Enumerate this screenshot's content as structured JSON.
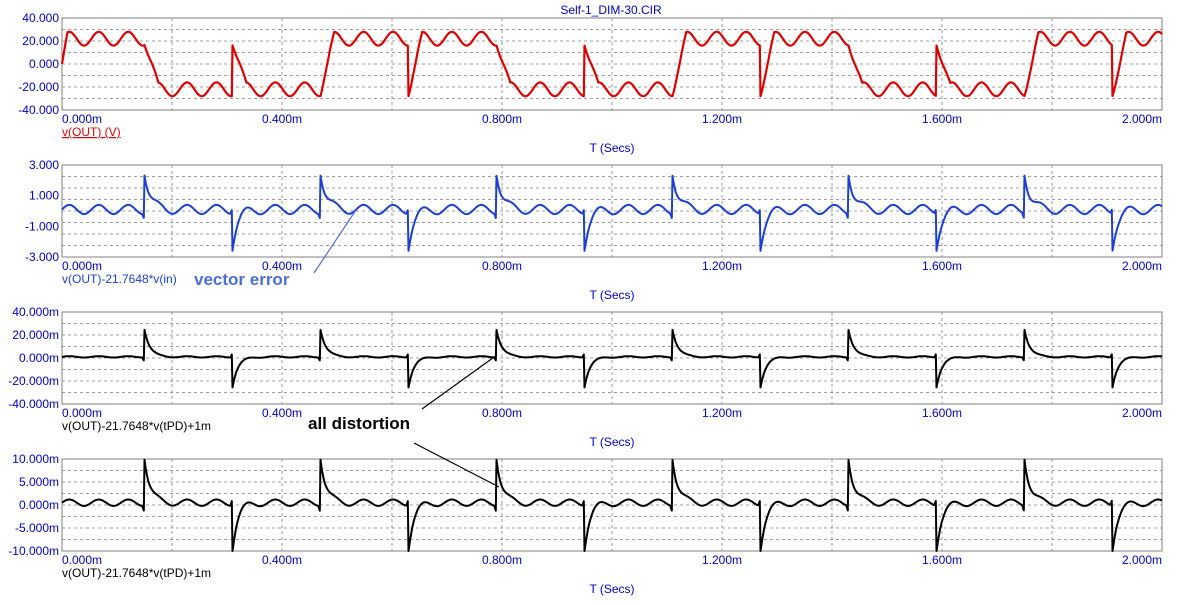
{
  "title": "Self-1_DIM-30.CIR",
  "colors": {
    "axis_text": "#0000cc",
    "grid": "#808080",
    "red_trace": "#e00000",
    "blue_trace": "#1c3fd6",
    "black_trace": "#000000",
    "annotation_blue": "#4a6fd8",
    "annotation_black": "#000000"
  },
  "annotations": {
    "vector_error": "vector error",
    "all_distortion": "all distortion"
  },
  "chart_data": [
    {
      "type": "line",
      "xlabel": "T (Secs)",
      "xlim": [
        0,
        0.002
      ],
      "x_ticks": [
        "0.000m",
        "0.400m",
        "0.800m",
        "1.200m",
        "1.600m",
        "2.000m"
      ],
      "ylim": [
        -40,
        40
      ],
      "y_ticks": [
        "40.000",
        "20.000",
        "0.000",
        "-20.000",
        "-40.000"
      ],
      "series": [
        {
          "name": "v(OUT) (V)",
          "color": "#e00000",
          "underlined": true,
          "shape": "square",
          "amplitude": 22,
          "ripple": 6,
          "spike": 0,
          "dip": 0
        }
      ]
    },
    {
      "type": "line",
      "xlabel": "T (Secs)",
      "xlim": [
        0,
        0.002
      ],
      "x_ticks": [
        "0.000m",
        "0.400m",
        "0.800m",
        "1.200m",
        "1.600m",
        "2.000m"
      ],
      "ylim": [
        -3,
        3
      ],
      "y_ticks": [
        "3.000",
        "1.000",
        "-1.000",
        "-3.000"
      ],
      "series": [
        {
          "name": "v(OUT)-21.7648*v(in)",
          "color": "#1c3fd6",
          "underlined": false,
          "shape": "error",
          "base": 0.1,
          "ripple": 0.3,
          "spike": 2.5,
          "dip": -2.4
        }
      ]
    },
    {
      "type": "line",
      "xlabel": "T (Secs)",
      "xlim": [
        0,
        0.002
      ],
      "x_ticks": [
        "0.000m",
        "0.400m",
        "0.800m",
        "1.200m",
        "1.600m",
        "2.000m"
      ],
      "ylim": [
        -40,
        40
      ],
      "y_ticks": [
        "40.000m",
        "20.000m",
        "0.000m",
        "-20.000m",
        "-40.000m"
      ],
      "series": [
        {
          "name": "v(OUT)-21.7648*v(tPD)+1m",
          "color": "#000000",
          "underlined": false,
          "shape": "spikes",
          "base": 1,
          "ripple": 0.6,
          "spike": 24,
          "dip": -26
        }
      ]
    },
    {
      "type": "line",
      "xlabel": "T (Secs)",
      "xlim": [
        0,
        0.002
      ],
      "x_ticks": [
        "0.000m",
        "0.400m",
        "0.800m",
        "1.200m",
        "1.600m",
        "2.000m"
      ],
      "ylim": [
        -10,
        10
      ],
      "y_ticks": [
        "10.000m",
        "5.000m",
        "0.000m",
        "-5.000m",
        "-10.000m"
      ],
      "series": [
        {
          "name": "v(OUT)-21.7648*v(tPD)+1m",
          "color": "#000000",
          "underlined": false,
          "shape": "spikes",
          "base": 0.5,
          "ripple": 0.7,
          "spike": 10,
          "dip": -10
        }
      ]
    }
  ]
}
